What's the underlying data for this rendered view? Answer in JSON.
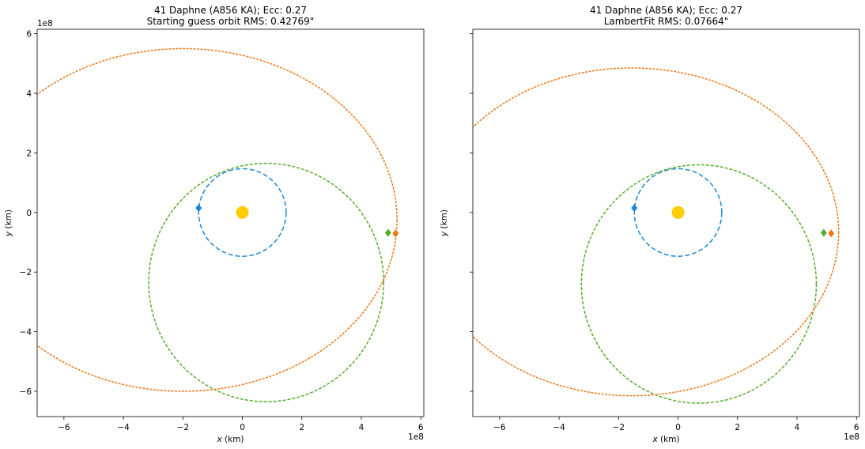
{
  "chart_data": [
    {
      "type": "scatter",
      "title_line1": "41 Daphne (A856 KA); Ecc: 0.27",
      "title_line2": "Starting guess orbit RMS: 0.42769\"",
      "xlabel_var": "x",
      "xlabel_unit": " (km)",
      "ylabel_var": "y",
      "ylabel_unit": " (km)",
      "offset_text": "1e8",
      "xlim": [
        -6.9,
        6.1
      ],
      "ylim": [
        -6.85,
        6.15
      ],
      "xticks": [
        -6,
        -4,
        -2,
        0,
        2,
        4,
        6
      ],
      "yticks": [
        -6,
        -4,
        -2,
        0,
        2,
        4,
        6
      ],
      "show_y_tick_labels": true,
      "orbits": [
        {
          "color": "#1f88d4",
          "center": [
            0.0,
            0.0
          ],
          "rx": 1.47,
          "ry": 1.47,
          "dash": "6,3"
        },
        {
          "color": "#56ad2b",
          "center": [
            0.8,
            -2.35
          ],
          "rx": 3.95,
          "ry": 4.0,
          "dash": "4,2"
        },
        {
          "color": "#f07818",
          "center": [
            -2.0,
            -0.25
          ],
          "rx": 7.2,
          "ry": 5.75,
          "dash": "3,1.5"
        }
      ],
      "sun": {
        "x": 0.0,
        "y": 0.0,
        "color": "#ffcc00"
      },
      "markers": [
        {
          "color": "#1f88d4",
          "x": -1.47,
          "y": 0.15
        },
        {
          "color": "#56ad2b",
          "x": 4.9,
          "y": -0.68
        },
        {
          "color": "#f07818",
          "x": 5.15,
          "y": -0.7
        }
      ]
    },
    {
      "type": "scatter",
      "title_line1": "41 Daphne (A856 KA); Ecc: 0.27",
      "title_line2": "LambertFit RMS: 0.07664\"",
      "xlabel_var": "x",
      "xlabel_unit": " (km)",
      "ylabel_var": "y",
      "ylabel_unit": " (km)",
      "offset_text": "1e8",
      "xlim": [
        -6.9,
        6.1
      ],
      "ylim": [
        -6.85,
        6.15
      ],
      "xticks": [
        -6,
        -4,
        -2,
        0,
        2,
        4,
        6
      ],
      "yticks": [
        -6,
        -4,
        -2,
        0,
        2,
        4,
        6
      ],
      "show_y_tick_labels": false,
      "orbits": [
        {
          "color": "#1f88d4",
          "center": [
            0.0,
            0.0
          ],
          "rx": 1.47,
          "ry": 1.47,
          "dash": "6,3"
        },
        {
          "color": "#56ad2b",
          "center": [
            0.7,
            -2.4
          ],
          "rx": 3.95,
          "ry": 4.0,
          "dash": "4,2"
        },
        {
          "color": "#f07818",
          "center": [
            -1.55,
            -0.65
          ],
          "rx": 6.95,
          "ry": 5.5,
          "dash": "3,1.5"
        }
      ],
      "sun": {
        "x": 0.0,
        "y": 0.0,
        "color": "#ffcc00"
      },
      "markers": [
        {
          "color": "#1f88d4",
          "x": -1.47,
          "y": 0.15
        },
        {
          "color": "#56ad2b",
          "x": 4.9,
          "y": -0.68
        },
        {
          "color": "#f07818",
          "x": 5.15,
          "y": -0.7
        }
      ]
    }
  ]
}
